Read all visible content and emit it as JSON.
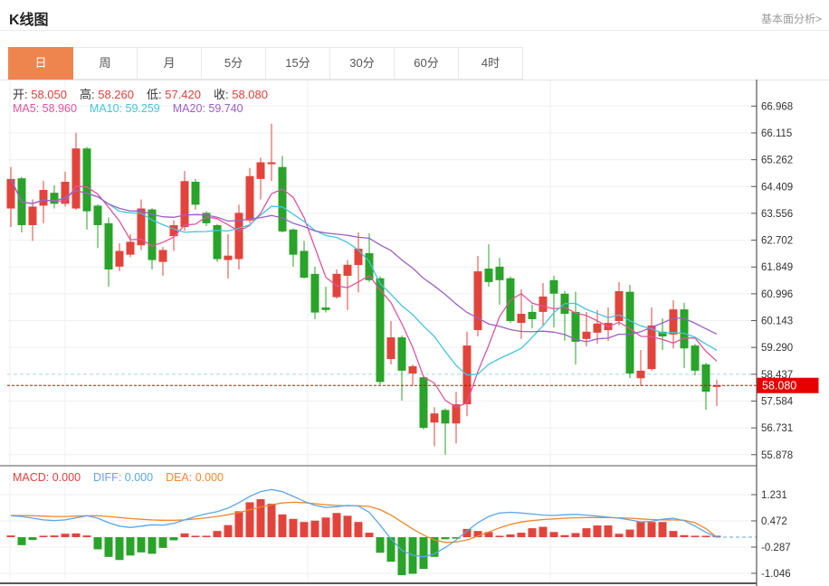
{
  "header": {
    "title": "K线图",
    "link_label": "基本面分析>"
  },
  "tabs": {
    "active_index": 0,
    "items": [
      {
        "name": "tab-day",
        "label": "日"
      },
      {
        "name": "tab-week",
        "label": "周"
      },
      {
        "name": "tab-month",
        "label": "月"
      },
      {
        "name": "tab-5min",
        "label": "5分"
      },
      {
        "name": "tab-15min",
        "label": "15分"
      },
      {
        "name": "tab-30min",
        "label": "30分"
      },
      {
        "name": "tab-60min",
        "label": "60分"
      },
      {
        "name": "tab-4hour",
        "label": "4时"
      }
    ]
  },
  "ohlc_legend": {
    "value_color": "#e2403a",
    "items": [
      {
        "label": "开:",
        "value": "58.050"
      },
      {
        "label": "高:",
        "value": "58.260"
      },
      {
        "label": "低:",
        "value": "57.420"
      },
      {
        "label": "收:",
        "value": "58.080"
      }
    ]
  },
  "ma_legend": [
    {
      "label": "MA5:",
      "value": "58.960",
      "color": "#e0549e"
    },
    {
      "label": "MA10:",
      "value": "59.259",
      "color": "#45c5dc"
    },
    {
      "label": "MA20:",
      "value": "59.740",
      "color": "#9d5fc4"
    }
  ],
  "macd_legend": [
    {
      "label": "MACD:",
      "value": "0.000",
      "color": "#e2403a"
    },
    {
      "label": "DIFF:",
      "value": "0.000",
      "color": "#5ba7e8"
    },
    {
      "label": "DEA:",
      "value": "0.000",
      "color": "#f0882b"
    }
  ],
  "chart_data": {
    "type": "candlestick+macd",
    "legend_position": "top-left",
    "grid": true,
    "price_axis_ticks": [
      "66.968",
      "66.115",
      "65.262",
      "64.409",
      "63.556",
      "62.702",
      "61.849",
      "60.996",
      "60.143",
      "59.290",
      "58.437",
      "57.584",
      "56.731",
      "55.878"
    ],
    "macd_axis_ticks": [
      "1.231",
      "0.472",
      "-0.287",
      "-1.046"
    ],
    "last_price": "58.080",
    "last_price_value": 58.08,
    "ma_values": {
      "ma5": 58.96,
      "ma10": 59.259,
      "ma20": 59.74
    },
    "macd_values": {
      "macd": 0.0,
      "diff": 0.0,
      "dea": 0.0
    },
    "candles_ohlc": [
      [
        63.71,
        65.03,
        63.12,
        64.65
      ],
      [
        64.67,
        64.72,
        62.95,
        63.18
      ],
      [
        63.18,
        64.0,
        62.68,
        63.77
      ],
      [
        63.8,
        64.59,
        63.24,
        64.3
      ],
      [
        64.21,
        64.45,
        63.71,
        63.86
      ],
      [
        63.86,
        64.88,
        63.77,
        64.56
      ],
      [
        63.71,
        66.12,
        63.66,
        65.62
      ],
      [
        65.62,
        65.67,
        63.04,
        63.62
      ],
      [
        63.8,
        63.84,
        62.45,
        63.18
      ],
      [
        63.24,
        63.42,
        61.22,
        61.77
      ],
      [
        61.86,
        62.6,
        61.72,
        62.36
      ],
      [
        62.24,
        62.89,
        62.16,
        62.65
      ],
      [
        62.54,
        64.0,
        62.39,
        63.71
      ],
      [
        63.68,
        63.72,
        61.77,
        62.07
      ],
      [
        62.01,
        62.48,
        61.57,
        62.39
      ],
      [
        62.83,
        63.33,
        62.36,
        63.18
      ],
      [
        63.12,
        64.9,
        63.0,
        64.58
      ],
      [
        64.56,
        64.65,
        63.68,
        63.83
      ],
      [
        63.57,
        63.62,
        63.15,
        63.24
      ],
      [
        63.18,
        63.22,
        62.01,
        62.1
      ],
      [
        62.07,
        62.89,
        61.48,
        62.21
      ],
      [
        62.1,
        63.83,
        61.77,
        63.57
      ],
      [
        63.33,
        65.0,
        63.24,
        64.74
      ],
      [
        64.65,
        65.33,
        64.0,
        65.18
      ],
      [
        65.12,
        66.41,
        64.59,
        65.18
      ],
      [
        65.03,
        65.38,
        62.95,
        62.98
      ],
      [
        63.04,
        63.08,
        61.86,
        62.24
      ],
      [
        62.36,
        62.68,
        61.48,
        61.51
      ],
      [
        61.63,
        61.86,
        60.19,
        60.4
      ],
      [
        60.56,
        61.22,
        60.4,
        60.48
      ],
      [
        60.89,
        61.77,
        60.84,
        61.63
      ],
      [
        61.57,
        62.07,
        60.48,
        61.92
      ],
      [
        61.91,
        62.95,
        61.04,
        62.43
      ],
      [
        62.29,
        62.92,
        61.37,
        61.43
      ],
      [
        61.49,
        61.55,
        58.11,
        58.19
      ],
      [
        58.92,
        60.13,
        58.75,
        59.61
      ],
      [
        59.61,
        59.67,
        57.6,
        58.55
      ],
      [
        58.46,
        58.75,
        58.08,
        58.69
      ],
      [
        58.34,
        58.4,
        56.68,
        56.73
      ],
      [
        56.9,
        57.39,
        56.15,
        57.19
      ],
      [
        57.3,
        57.35,
        55.88,
        56.87
      ],
      [
        56.87,
        57.88,
        56.24,
        57.48
      ],
      [
        57.48,
        59.79,
        57.1,
        59.35
      ],
      [
        59.84,
        62.2,
        59.64,
        61.71
      ],
      [
        61.8,
        62.57,
        61.22,
        61.37
      ],
      [
        61.86,
        62.14,
        60.65,
        61.43
      ],
      [
        61.49,
        61.55,
        60.07,
        60.13
      ],
      [
        60.07,
        61.14,
        59.56,
        60.36
      ],
      [
        60.42,
        60.65,
        59.9,
        60.19
      ],
      [
        60.42,
        61.34,
        59.99,
        60.91
      ],
      [
        61.43,
        61.57,
        59.93,
        61.0
      ],
      [
        61.0,
        61.08,
        59.5,
        60.36
      ],
      [
        60.42,
        61.06,
        58.75,
        59.47
      ],
      [
        59.56,
        60.42,
        59.32,
        59.79
      ],
      [
        59.76,
        60.48,
        59.41,
        60.05
      ],
      [
        59.84,
        60.56,
        59.5,
        60.07
      ],
      [
        60.13,
        61.37,
        59.99,
        61.08
      ],
      [
        61.06,
        61.28,
        58.31,
        58.46
      ],
      [
        58.31,
        59.21,
        58.06,
        58.55
      ],
      [
        58.6,
        60.56,
        58.55,
        59.99
      ],
      [
        59.79,
        60.22,
        59.21,
        59.64
      ],
      [
        59.7,
        60.79,
        59.26,
        60.5
      ],
      [
        60.5,
        60.71,
        58.63,
        59.26
      ],
      [
        59.35,
        59.4,
        58.4,
        58.55
      ],
      [
        58.75,
        58.8,
        57.3,
        57.88
      ],
      [
        58.05,
        58.26,
        57.42,
        58.08
      ]
    ],
    "macd_hist": [
      0.05,
      -0.23,
      -0.08,
      0.04,
      0.05,
      0.1,
      0.11,
      0.05,
      -0.35,
      -0.57,
      -0.66,
      -0.53,
      -0.44,
      -0.48,
      -0.31,
      -0.09,
      0.11,
      0.04,
      0.04,
      0.18,
      0.35,
      0.75,
      1.01,
      1.1,
      0.97,
      0.66,
      0.53,
      0.44,
      0.48,
      0.57,
      0.7,
      0.62,
      0.44,
      0.13,
      -0.45,
      -0.71,
      -1.1,
      -1.06,
      -0.92,
      -0.57,
      -0.06,
      -0.04,
      0.24,
      0.18,
      0.15,
      0.03,
      0.08,
      0.13,
      0.26,
      0.3,
      0.15,
      0.06,
      0.12,
      0.26,
      0.34,
      0.34,
      0.1,
      0.22,
      0.46,
      0.44,
      0.44,
      0.18,
      0.06,
      0.03,
      0.01,
      0.0
    ],
    "diff_line": [
      0.62,
      0.6,
      0.55,
      0.5,
      0.48,
      0.5,
      0.56,
      0.62,
      0.55,
      0.42,
      0.32,
      0.28,
      0.32,
      0.36,
      0.35,
      0.4,
      0.5,
      0.6,
      0.68,
      0.74,
      0.84,
      1.0,
      1.18,
      1.32,
      1.38,
      1.32,
      1.18,
      1.04,
      0.92,
      0.86,
      0.88,
      0.92,
      0.9,
      0.72,
      0.35,
      -0.05,
      -0.38,
      -0.52,
      -0.57,
      -0.48,
      -0.3,
      -0.08,
      0.18,
      0.42,
      0.6,
      0.7,
      0.72,
      0.7,
      0.67,
      0.64,
      0.63,
      0.65,
      0.66,
      0.64,
      0.61,
      0.58,
      0.55,
      0.5,
      0.44,
      0.46,
      0.52,
      0.55,
      0.48,
      0.32,
      0.14,
      0.0
    ],
    "dea_line": [
      0.63,
      0.63,
      0.62,
      0.61,
      0.6,
      0.6,
      0.61,
      0.62,
      0.62,
      0.6,
      0.57,
      0.54,
      0.52,
      0.5,
      0.49,
      0.49,
      0.5,
      0.53,
      0.56,
      0.6,
      0.65,
      0.71,
      0.79,
      0.87,
      0.94,
      0.99,
      1.01,
      1.0,
      0.97,
      0.94,
      0.92,
      0.91,
      0.91,
      0.89,
      0.8,
      0.64,
      0.44,
      0.24,
      0.06,
      -0.08,
      -0.15,
      -0.14,
      -0.08,
      0.03,
      0.15,
      0.27,
      0.37,
      0.44,
      0.48,
      0.51,
      0.53,
      0.55,
      0.56,
      0.57,
      0.57,
      0.57,
      0.56,
      0.55,
      0.53,
      0.51,
      0.5,
      0.5,
      0.49,
      0.42,
      0.25,
      0.0
    ],
    "colors": {
      "up": "#e2443c",
      "down": "#29a329",
      "ma5": "#e0549e",
      "ma10": "#45c5dc",
      "ma20": "#9d5fc4",
      "diff": "#5ba7e8",
      "dea": "#f0882b",
      "price_line": "#e60000",
      "badge_bg": "#e60000",
      "badge_text": "#ffffff",
      "grid": "#efefef",
      "axis": "#555555",
      "tick_text": "#333333",
      "blue_dashed_level": "#a8d4e8"
    }
  }
}
